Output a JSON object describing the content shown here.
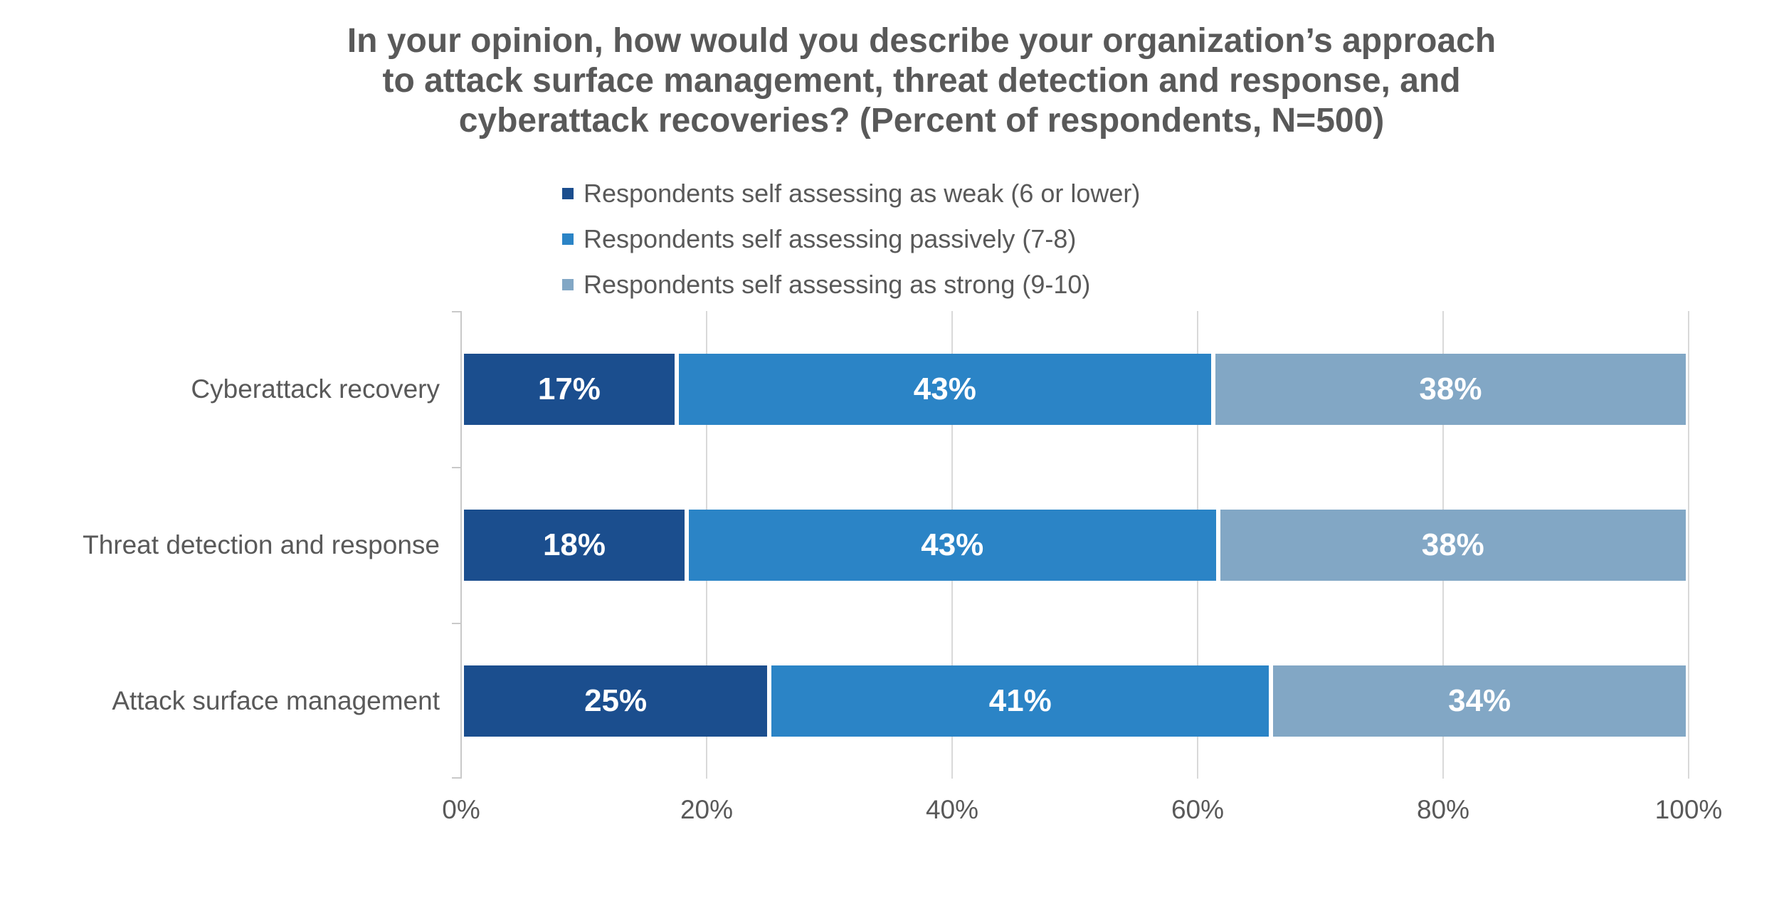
{
  "title": {
    "lines": [
      "In your opinion, how would you describe your organization’s approach",
      "to attack surface management, threat detection and response, and",
      "cyberattack recoveries? (Percent of respondents, N=500)"
    ],
    "full": "In your opinion, how would you describe your organization’s approach to attack surface management, threat detection and response, and cyberattack recoveries? (Percent of respondents, N=500)"
  },
  "legend": {
    "items": [
      {
        "label": "Respondents self assessing as weak (6 or lower)",
        "color": "#1b4e8e"
      },
      {
        "label": "Respondents self assessing passively (7-8)",
        "color": "#2b84c6"
      },
      {
        "label": "Respondents self assessing as strong (9-10)",
        "color": "#82a7c5"
      }
    ]
  },
  "x_axis": {
    "ticks": [
      "0%",
      "20%",
      "40%",
      "60%",
      "80%",
      "100%"
    ],
    "values": [
      0,
      20,
      40,
      60,
      80,
      100
    ]
  },
  "colors": {
    "title_text": "#595959",
    "axis_text": "#595959",
    "bar_label_text": "#ffffff",
    "gridline": "#d9d9d9",
    "axis_line": "#c9c9c9",
    "background": "#ffffff"
  },
  "chart_data": {
    "type": "bar",
    "subtype": "horizontal-stacked",
    "title": "In your opinion, how would you describe your organization’s approach to attack surface management, threat detection and response, and cyberattack recoveries? (Percent of respondents, N=500)",
    "categories": [
      "Cyberattack recovery",
      "Threat detection and response",
      "Attack surface management"
    ],
    "series": [
      {
        "name": "Respondents self assessing as weak (6 or lower)",
        "color": "#1b4e8e",
        "values": [
          17,
          18,
          25
        ],
        "labels": [
          "17%",
          "18%",
          "25%"
        ]
      },
      {
        "name": "Respondents self assessing passively (7-8)",
        "color": "#2b84c6",
        "values": [
          43,
          43,
          41
        ],
        "labels": [
          "43%",
          "43%",
          "41%"
        ]
      },
      {
        "name": "Respondents self assessing as strong (9-10)",
        "color": "#82a7c5",
        "values": [
          38,
          38,
          34
        ],
        "labels": [
          "38%",
          "38%",
          "34%"
        ]
      }
    ],
    "xlabel": "",
    "ylabel": "",
    "xlim": [
      0,
      100
    ],
    "x_ticks": [
      "0%",
      "20%",
      "40%",
      "60%",
      "80%",
      "100%"
    ],
    "grid": "vertical",
    "legend_position": "top",
    "value_labels": "inside-center",
    "units": "percent"
  }
}
